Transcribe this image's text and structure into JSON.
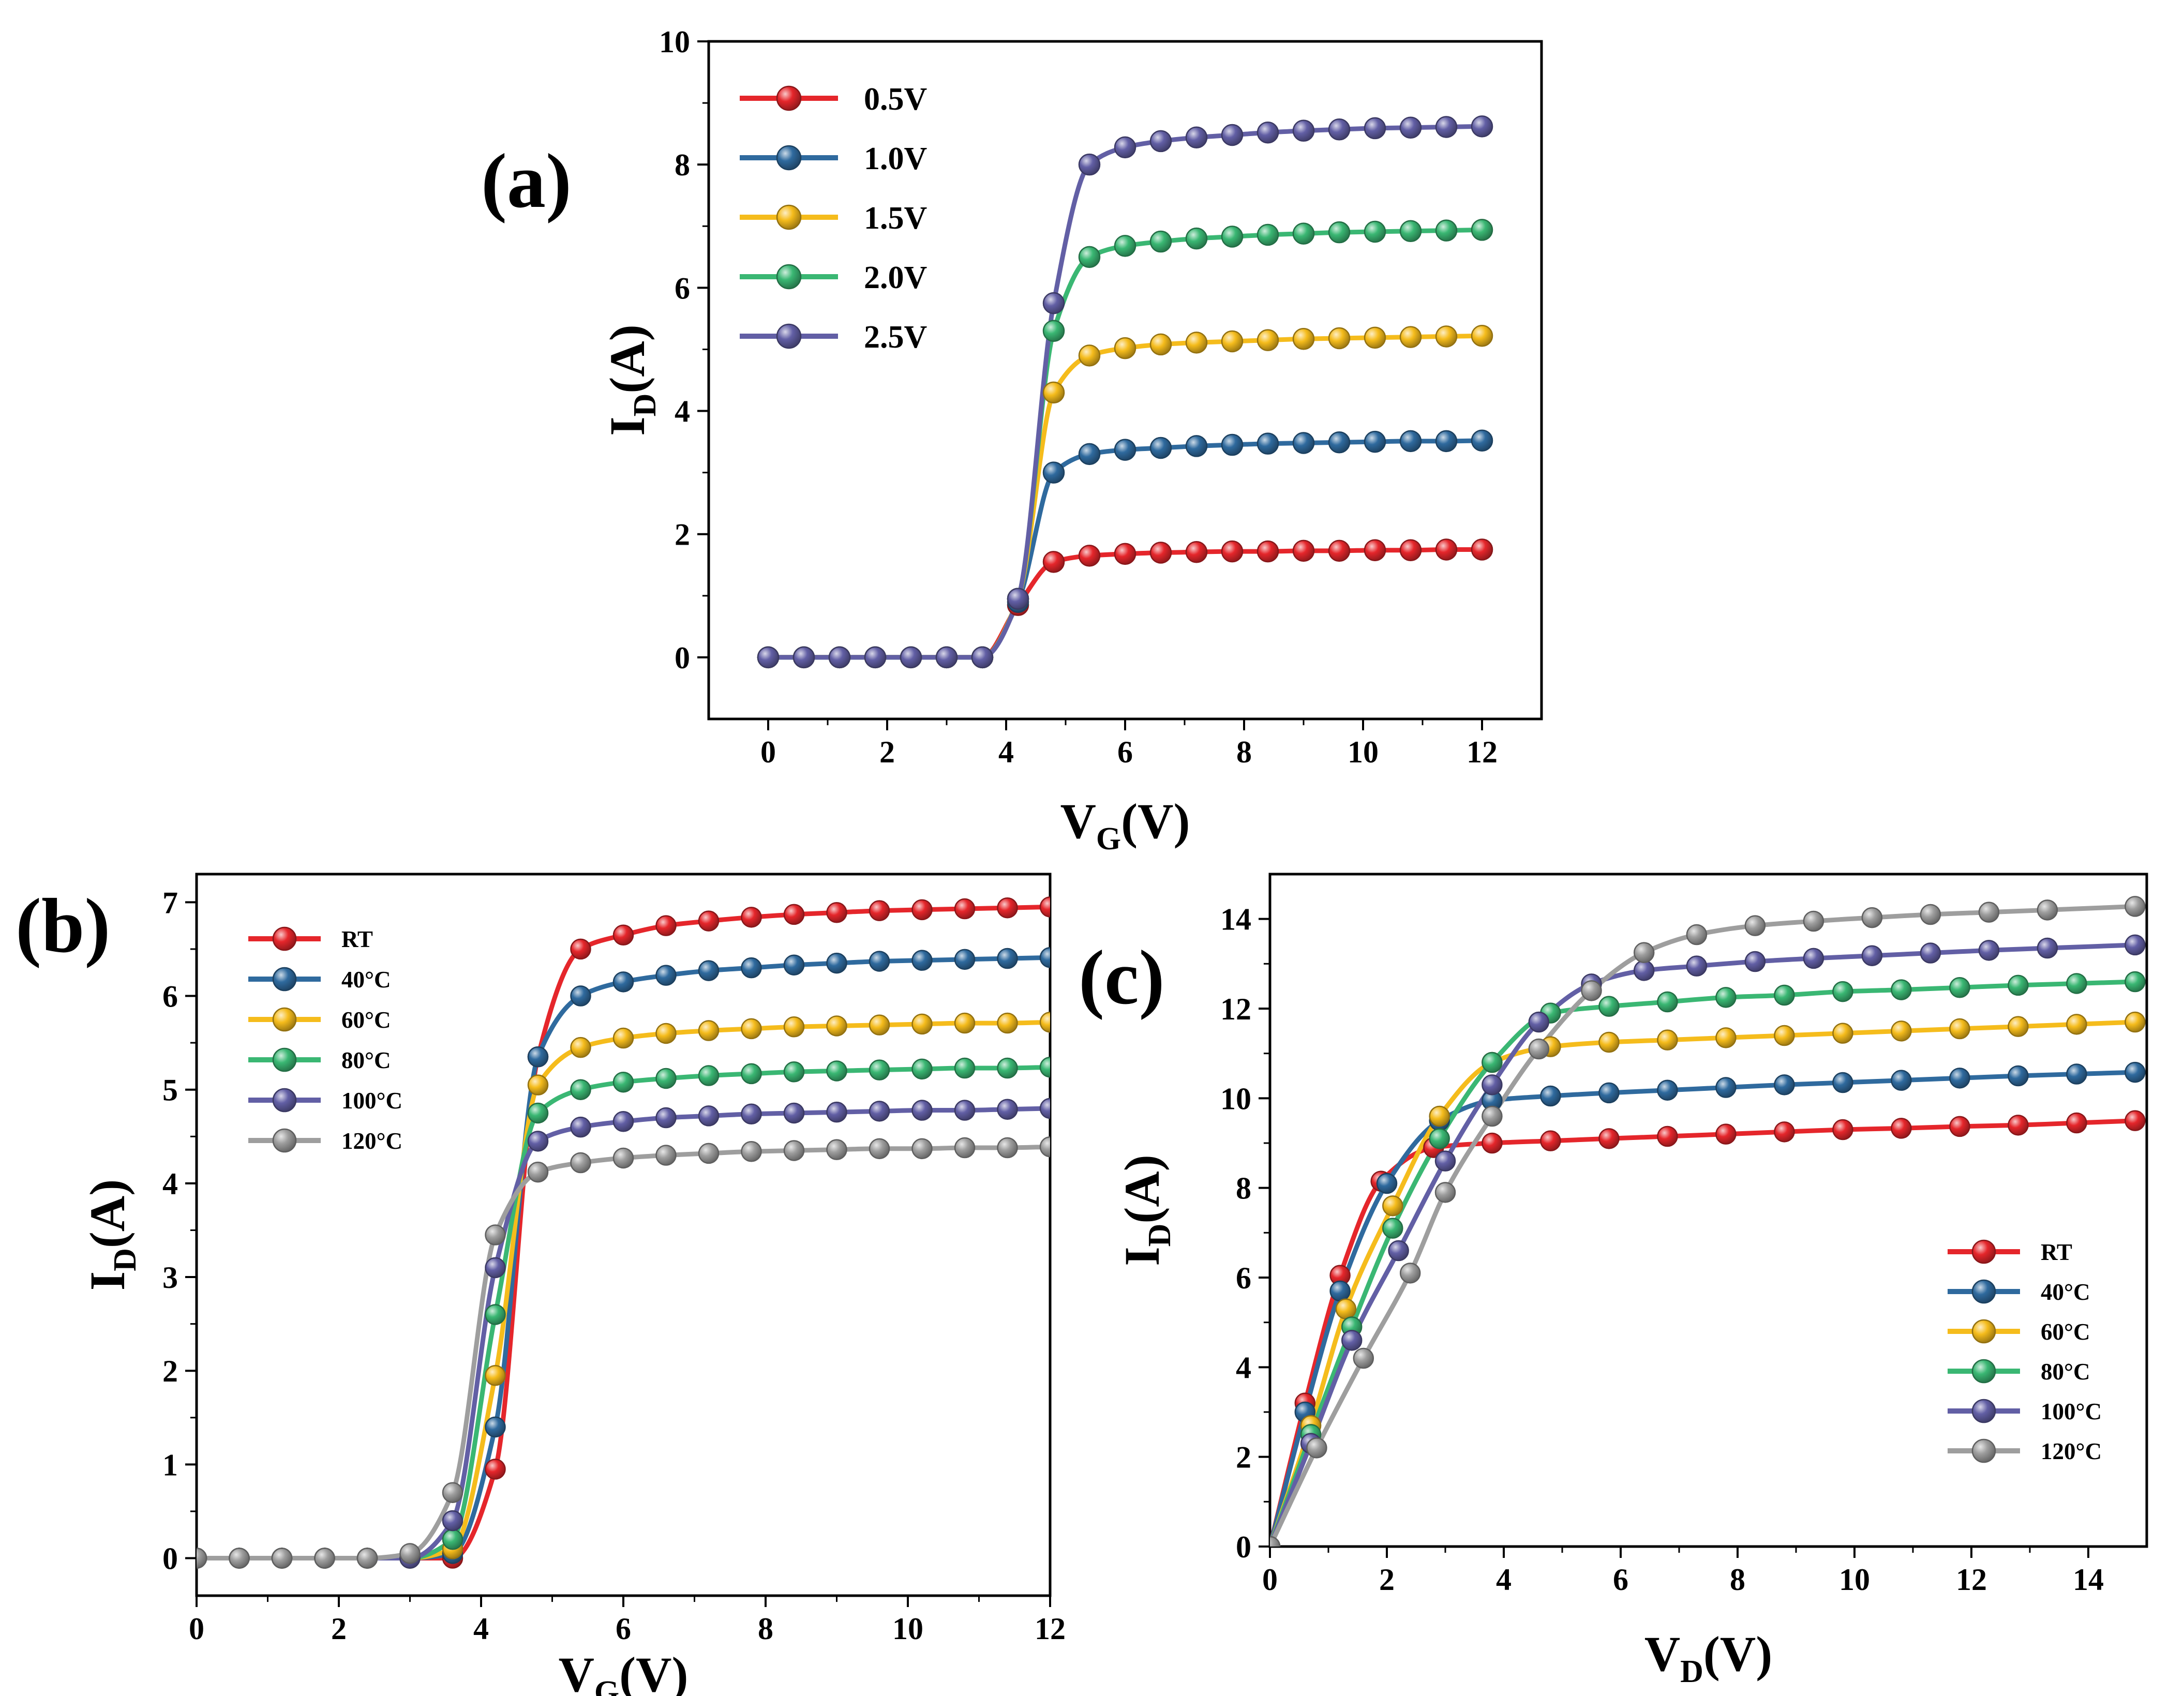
{
  "chart_data": [
    {
      "panel": "(a)",
      "type": "line",
      "xlabel_main": "V",
      "xlabel_sub": "G",
      "xlabel_unit": "(V)",
      "ylabel_main": "I",
      "ylabel_sub": "D",
      "ylabel_unit": "(A)",
      "xlim": [
        -1,
        13
      ],
      "ylim": [
        -1,
        10
      ],
      "xticks": [
        0,
        2,
        4,
        6,
        8,
        10,
        12
      ],
      "yticks": [
        0,
        2,
        4,
        6,
        8,
        10
      ],
      "legend_position": "top-left",
      "x": [
        0,
        0.6,
        1.2,
        1.8,
        2.4,
        3.0,
        3.6,
        4.2,
        4.8,
        5.4,
        6.0,
        6.6,
        7.2,
        7.8,
        8.4,
        9.0,
        9.6,
        10.2,
        10.8,
        11.4,
        12.0
      ],
      "series": [
        {
          "name": "0.5V",
          "color": "#e5262b",
          "values": [
            0,
            0,
            0,
            0,
            0,
            0,
            0,
            0.85,
            1.55,
            1.65,
            1.68,
            1.7,
            1.71,
            1.72,
            1.72,
            1.73,
            1.73,
            1.74,
            1.74,
            1.75,
            1.75
          ]
        },
        {
          "name": "1.0V",
          "color": "#2f6a9e",
          "values": [
            0,
            0,
            0,
            0,
            0,
            0,
            0,
            0.9,
            3.0,
            3.3,
            3.37,
            3.4,
            3.43,
            3.45,
            3.47,
            3.48,
            3.49,
            3.5,
            3.51,
            3.51,
            3.52
          ]
        },
        {
          "name": "1.5V",
          "color": "#f5bc1c",
          "values": [
            0,
            0,
            0,
            0,
            0,
            0,
            0,
            0.95,
            4.3,
            4.9,
            5.02,
            5.08,
            5.11,
            5.13,
            5.15,
            5.17,
            5.18,
            5.19,
            5.2,
            5.21,
            5.22
          ]
        },
        {
          "name": "2.0V",
          "color": "#3ab773",
          "values": [
            0,
            0,
            0,
            0,
            0,
            0,
            0,
            0.95,
            5.3,
            6.5,
            6.68,
            6.75,
            6.8,
            6.83,
            6.86,
            6.88,
            6.9,
            6.91,
            6.92,
            6.93,
            6.94
          ]
        },
        {
          "name": "2.5V",
          "color": "#625fa5",
          "values": [
            0,
            0,
            0,
            0,
            0,
            0,
            0,
            0.95,
            5.75,
            8.0,
            8.28,
            8.38,
            8.44,
            8.48,
            8.52,
            8.55,
            8.57,
            8.59,
            8.6,
            8.61,
            8.62
          ]
        }
      ]
    },
    {
      "panel": "(b)",
      "type": "line",
      "xlabel_main": "V",
      "xlabel_sub": "G",
      "xlabel_unit": "(V)",
      "ylabel_main": "I",
      "ylabel_sub": "D",
      "ylabel_unit": "(A)",
      "xlim": [
        0,
        12
      ],
      "ylim": [
        -0.4,
        7.3
      ],
      "xticks": [
        0,
        2,
        4,
        6,
        8,
        10,
        12
      ],
      "yticks": [
        0,
        1,
        2,
        3,
        4,
        5,
        6,
        7
      ],
      "legend_position": "top-left",
      "x": [
        0,
        0.6,
        1.2,
        1.8,
        2.4,
        3.0,
        3.6,
        4.2,
        4.8,
        5.4,
        6.0,
        6.6,
        7.2,
        7.8,
        8.4,
        9.0,
        9.6,
        10.2,
        10.8,
        11.4,
        12.0
      ],
      "series": [
        {
          "name": "RT",
          "color": "#e5262b",
          "values": [
            0,
            0,
            0,
            0,
            0,
            0,
            0,
            0.95,
            5.35,
            6.5,
            6.65,
            6.75,
            6.8,
            6.84,
            6.87,
            6.89,
            6.91,
            6.92,
            6.93,
            6.94,
            6.95
          ]
        },
        {
          "name": "40°C",
          "color": "#2f6a9e",
          "values": [
            0,
            0,
            0,
            0,
            0,
            0,
            0.05,
            1.4,
            5.35,
            6.0,
            6.15,
            6.22,
            6.27,
            6.3,
            6.33,
            6.35,
            6.37,
            6.38,
            6.39,
            6.4,
            6.41
          ]
        },
        {
          "name": "60°C",
          "color": "#f5bc1c",
          "values": [
            0,
            0,
            0,
            0,
            0,
            0,
            0.1,
            1.95,
            5.05,
            5.45,
            5.55,
            5.6,
            5.63,
            5.65,
            5.67,
            5.68,
            5.69,
            5.7,
            5.71,
            5.71,
            5.72
          ]
        },
        {
          "name": "80°C",
          "color": "#3ab773",
          "values": [
            0,
            0,
            0,
            0,
            0,
            0,
            0.2,
            2.6,
            4.75,
            5.0,
            5.08,
            5.12,
            5.15,
            5.17,
            5.19,
            5.2,
            5.21,
            5.22,
            5.23,
            5.23,
            5.24
          ]
        },
        {
          "name": "100°C",
          "color": "#625fa5",
          "values": [
            0,
            0,
            0,
            0,
            0,
            0,
            0.4,
            3.1,
            4.45,
            4.6,
            4.66,
            4.7,
            4.72,
            4.74,
            4.75,
            4.76,
            4.77,
            4.78,
            4.78,
            4.79,
            4.8
          ]
        },
        {
          "name": "120°C",
          "color": "#9e9e9e",
          "values": [
            0,
            0,
            0,
            0,
            0,
            0.05,
            0.7,
            3.45,
            4.12,
            4.22,
            4.27,
            4.3,
            4.32,
            4.34,
            4.35,
            4.36,
            4.37,
            4.37,
            4.38,
            4.38,
            4.39
          ]
        }
      ]
    },
    {
      "panel": "(c)",
      "type": "line",
      "xlabel_main": "V",
      "xlabel_sub": "D",
      "xlabel_unit": "(V)",
      "ylabel_main": "I",
      "ylabel_sub": "D",
      "ylabel_unit": "(A)",
      "xlim": [
        0,
        15
      ],
      "ylim": [
        0,
        15
      ],
      "xticks": [
        0,
        2,
        4,
        6,
        8,
        10,
        12,
        14
      ],
      "yticks": [
        0,
        2,
        4,
        6,
        8,
        10,
        12,
        14
      ],
      "legend_position": "bottom-right",
      "series": [
        {
          "name": "RT",
          "color": "#e5262b",
          "x": [
            0,
            0.6,
            1.2,
            1.9,
            2.8,
            3.8,
            4.8,
            5.8,
            6.8,
            7.8,
            8.8,
            9.8,
            10.8,
            11.8,
            12.8,
            13.8,
            14.8
          ],
          "values": [
            0,
            3.2,
            6.05,
            8.15,
            8.9,
            9.0,
            9.05,
            9.1,
            9.15,
            9.2,
            9.25,
            9.3,
            9.33,
            9.37,
            9.4,
            9.45,
            9.5
          ]
        },
        {
          "name": "40°C",
          "color": "#2f6a9e",
          "x": [
            0,
            0.6,
            1.2,
            2.0,
            2.9,
            3.8,
            4.8,
            5.8,
            6.8,
            7.8,
            8.8,
            9.8,
            10.8,
            11.8,
            12.8,
            13.8,
            14.8
          ],
          "values": [
            0,
            3.0,
            5.7,
            8.1,
            9.5,
            9.95,
            10.05,
            10.12,
            10.18,
            10.24,
            10.3,
            10.35,
            10.4,
            10.45,
            10.5,
            10.54,
            10.58
          ]
        },
        {
          "name": "60°C",
          "color": "#f5bc1c",
          "x": [
            0,
            0.7,
            1.3,
            2.1,
            2.9,
            3.8,
            4.8,
            5.8,
            6.8,
            7.8,
            8.8,
            9.8,
            10.8,
            11.8,
            12.8,
            13.8,
            14.8
          ],
          "values": [
            0,
            2.7,
            5.3,
            7.6,
            9.6,
            10.8,
            11.15,
            11.25,
            11.3,
            11.35,
            11.4,
            11.45,
            11.5,
            11.55,
            11.6,
            11.65,
            11.7
          ]
        },
        {
          "name": "80°C",
          "color": "#3ab773",
          "x": [
            0,
            0.7,
            1.4,
            2.1,
            2.9,
            3.8,
            4.8,
            5.8,
            6.8,
            7.8,
            8.8,
            9.8,
            10.8,
            11.8,
            12.8,
            13.8,
            14.8
          ],
          "values": [
            0,
            2.5,
            4.9,
            7.1,
            9.1,
            10.8,
            11.9,
            12.05,
            12.15,
            12.25,
            12.3,
            12.38,
            12.42,
            12.47,
            12.52,
            12.56,
            12.6
          ]
        },
        {
          "name": "100°C",
          "color": "#625fa5",
          "x": [
            0,
            0.7,
            1.4,
            2.2,
            3.0,
            3.8,
            4.6,
            5.5,
            6.4,
            7.3,
            8.3,
            9.3,
            10.3,
            11.3,
            12.3,
            13.3,
            14.8
          ],
          "values": [
            0,
            2.3,
            4.6,
            6.6,
            8.6,
            10.3,
            11.7,
            12.55,
            12.85,
            12.95,
            13.05,
            13.12,
            13.18,
            13.24,
            13.3,
            13.35,
            13.42
          ]
        },
        {
          "name": "120°C",
          "color": "#9e9e9e",
          "x": [
            0,
            0.8,
            1.6,
            2.4,
            3.0,
            3.8,
            4.6,
            5.5,
            6.4,
            7.3,
            8.3,
            9.3,
            10.3,
            11.3,
            12.3,
            13.3,
            14.8
          ],
          "values": [
            0,
            2.2,
            4.2,
            6.1,
            7.9,
            9.6,
            11.1,
            12.4,
            13.25,
            13.65,
            13.85,
            13.95,
            14.03,
            14.1,
            14.15,
            14.2,
            14.28
          ]
        }
      ]
    }
  ]
}
